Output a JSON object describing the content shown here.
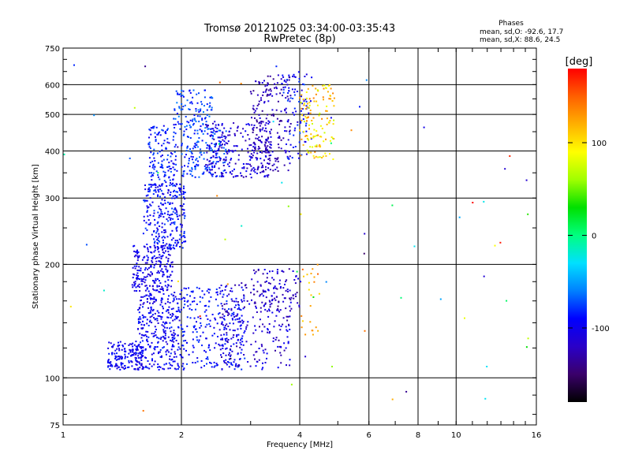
{
  "header": {
    "title": "Tromsø 20121025 03:34:00-03:35:43",
    "subtitle": "RwPretec (8p)"
  },
  "phases_info": {
    "label": "Phases",
    "line_o": "mean, sd,O: -92.6, 17.7",
    "line_x": "mean, sd,X:  88.6, 24.5"
  },
  "chart_data": {
    "type": "scatter",
    "xlabel": "Frequency [MHz]",
    "ylabel": "Stationary phase Virtual Height [km]",
    "x_scale": "log",
    "y_scale": "log",
    "xlim": [
      1,
      16
    ],
    "ylim": [
      75,
      750
    ],
    "x_ticks": [
      1,
      2,
      4,
      6,
      8,
      10,
      16
    ],
    "y_ticks": [
      75,
      100,
      200,
      300,
      400,
      500,
      600,
      750
    ],
    "x_grid": [
      2,
      4,
      6,
      8,
      10
    ],
    "y_grid": [
      100,
      200,
      300,
      400,
      500,
      600
    ],
    "grid": true,
    "colorbar": {
      "label": "[deg]",
      "range": [
        -180,
        180
      ],
      "ticks": [
        100,
        0,
        -100
      ],
      "colors": [
        "#000000",
        "#3a006a",
        "#2a00c8",
        "#0000ff",
        "#0080ff",
        "#00e0ff",
        "#00ff80",
        "#00e000",
        "#a0ff00",
        "#ffff00",
        "#ffb000",
        "#ff6000",
        "#ff0000"
      ]
    },
    "series": [
      {
        "clusters": [
          {
            "f": [
              1.3,
              1.6
            ],
            "h": [
              105,
              125
            ],
            "n": 170,
            "phase": [
              -115,
              -80
            ]
          },
          {
            "f": [
              1.55,
              2.0
            ],
            "h": [
              105,
              170
            ],
            "n": 330,
            "phase": [
              -115,
              -80
            ]
          },
          {
            "f": [
              1.5,
              1.9
            ],
            "h": [
              170,
              225
            ],
            "n": 230,
            "phase": [
              -118,
              -85
            ]
          },
          {
            "f": [
              1.6,
              2.05
            ],
            "h": [
              220,
              330
            ],
            "n": 270,
            "phase": [
              -110,
              -72
            ]
          },
          {
            "f": [
              1.65,
              1.95
            ],
            "h": [
              330,
              470
            ],
            "n": 130,
            "phase": [
              -105,
              -70
            ]
          },
          {
            "f": [
              1.9,
              2.4
            ],
            "h": [
              450,
              580
            ],
            "n": 110,
            "phase": [
              -95,
              -60
            ]
          },
          {
            "f": [
              2.0,
              2.6
            ],
            "h": [
              340,
              460
            ],
            "n": 160,
            "phase": [
              -95,
              -62
            ]
          },
          {
            "f": [
              2.0,
              2.9
            ],
            "h": [
              105,
              175
            ],
            "n": 240,
            "phase": [
              -105,
              -75
            ]
          },
          {
            "f": [
              2.5,
              3.8
            ],
            "h": [
              105,
              180
            ],
            "n": 240,
            "phase": [
              -135,
              -90
            ]
          },
          {
            "f": [
              3.0,
              4.0
            ],
            "h": [
              150,
              195
            ],
            "n": 90,
            "phase": [
              -140,
              -100
            ]
          },
          {
            "f": [
              2.3,
              3.4
            ],
            "h": [
              340,
              480
            ],
            "n": 230,
            "phase": [
              -130,
              -90
            ]
          },
          {
            "f": [
              3.0,
              3.8
            ],
            "h": [
              350,
              640
            ],
            "n": 200,
            "phase": [
              -140,
              -105
            ]
          },
          {
            "f": [
              3.6,
              4.3
            ],
            "h": [
              380,
              650
            ],
            "n": 90,
            "phase": [
              -120,
              -70
            ]
          },
          {
            "f": [
              4.0,
              4.9
            ],
            "h": [
              380,
              600
            ],
            "n": 130,
            "phase": [
              70,
              140
            ]
          },
          {
            "f": [
              4.0,
              4.5
            ],
            "h": [
              130,
              200
            ],
            "n": 25,
            "phase": [
              100,
              150
            ]
          },
          {
            "f": [
              1.0,
              16.0
            ],
            "h": [
              80,
              700
            ],
            "n": 70,
            "phase": [
              -180,
              180
            ]
          }
        ]
      }
    ]
  }
}
